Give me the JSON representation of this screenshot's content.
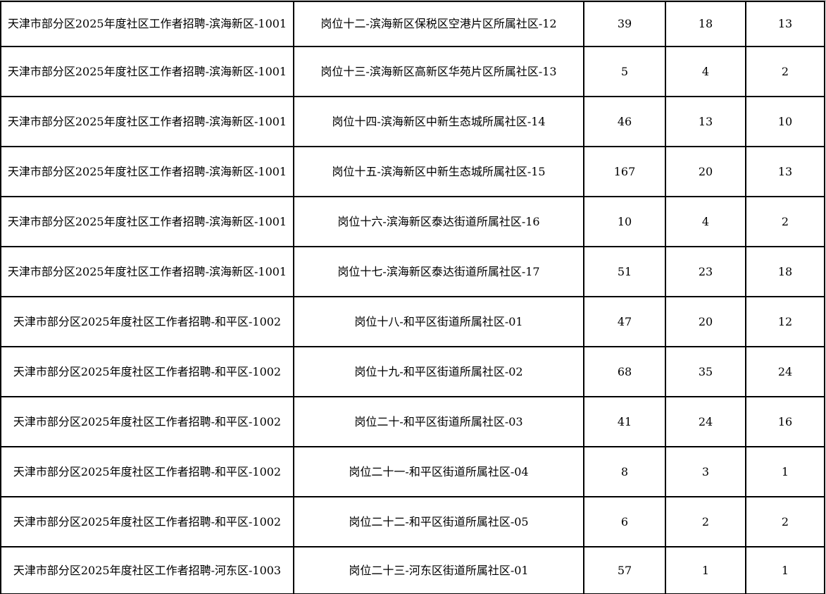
{
  "page": {
    "background_color": "#ffffff",
    "grid_line_color": "#000000",
    "text_color": "#000000",
    "top_strip_color": "#c6c6c6"
  },
  "table": {
    "columns": [
      {
        "key": "project"
      },
      {
        "key": "position"
      },
      {
        "key": "col3"
      },
      {
        "key": "col4"
      },
      {
        "key": "col5"
      }
    ],
    "rows": [
      {
        "project": "天津市部分区2025年度社区工作者招聘-滨海新区-1001",
        "position": "岗位十二-滨海新区保税区空港片区所属社区-12",
        "col3": "39",
        "col4": "18",
        "col5": "13"
      },
      {
        "project": "天津市部分区2025年度社区工作者招聘-滨海新区-1001",
        "position": "岗位十三-滨海新区高新区华苑片区所属社区-13",
        "col3": "5",
        "col4": "4",
        "col5": "2"
      },
      {
        "project": "天津市部分区2025年度社区工作者招聘-滨海新区-1001",
        "position": "岗位十四-滨海新区中新生态城所属社区-14",
        "col3": "46",
        "col4": "13",
        "col5": "10"
      },
      {
        "project": "天津市部分区2025年度社区工作者招聘-滨海新区-1001",
        "position": "岗位十五-滨海新区中新生态城所属社区-15",
        "col3": "167",
        "col4": "20",
        "col5": "13"
      },
      {
        "project": "天津市部分区2025年度社区工作者招聘-滨海新区-1001",
        "position": "岗位十六-滨海新区泰达街道所属社区-16",
        "col3": "10",
        "col4": "4",
        "col5": "2"
      },
      {
        "project": "天津市部分区2025年度社区工作者招聘-滨海新区-1001",
        "position": "岗位十七-滨海新区泰达街道所属社区-17",
        "col3": "51",
        "col4": "23",
        "col5": "18"
      },
      {
        "project": "天津市部分区2025年度社区工作者招聘-和平区-1002",
        "position": "岗位十八-和平区街道所属社区-01",
        "col3": "47",
        "col4": "20",
        "col5": "12"
      },
      {
        "project": "天津市部分区2025年度社区工作者招聘-和平区-1002",
        "position": "岗位十九-和平区街道所属社区-02",
        "col3": "68",
        "col4": "35",
        "col5": "24"
      },
      {
        "project": "天津市部分区2025年度社区工作者招聘-和平区-1002",
        "position": "岗位二十-和平区街道所属社区-03",
        "col3": "41",
        "col4": "24",
        "col5": "16"
      },
      {
        "project": "天津市部分区2025年度社区工作者招聘-和平区-1002",
        "position": "岗位二十一-和平区街道所属社区-04",
        "col3": "8",
        "col4": "3",
        "col5": "1"
      },
      {
        "project": "天津市部分区2025年度社区工作者招聘-和平区-1002",
        "position": "岗位二十二-和平区街道所属社区-05",
        "col3": "6",
        "col4": "2",
        "col5": "2"
      },
      {
        "project": "天津市部分区2025年度社区工作者招聘-河东区-1003",
        "position": "岗位二十三-河东区街道所属社区-01",
        "col3": "57",
        "col4": "1",
        "col5": "1"
      }
    ]
  }
}
